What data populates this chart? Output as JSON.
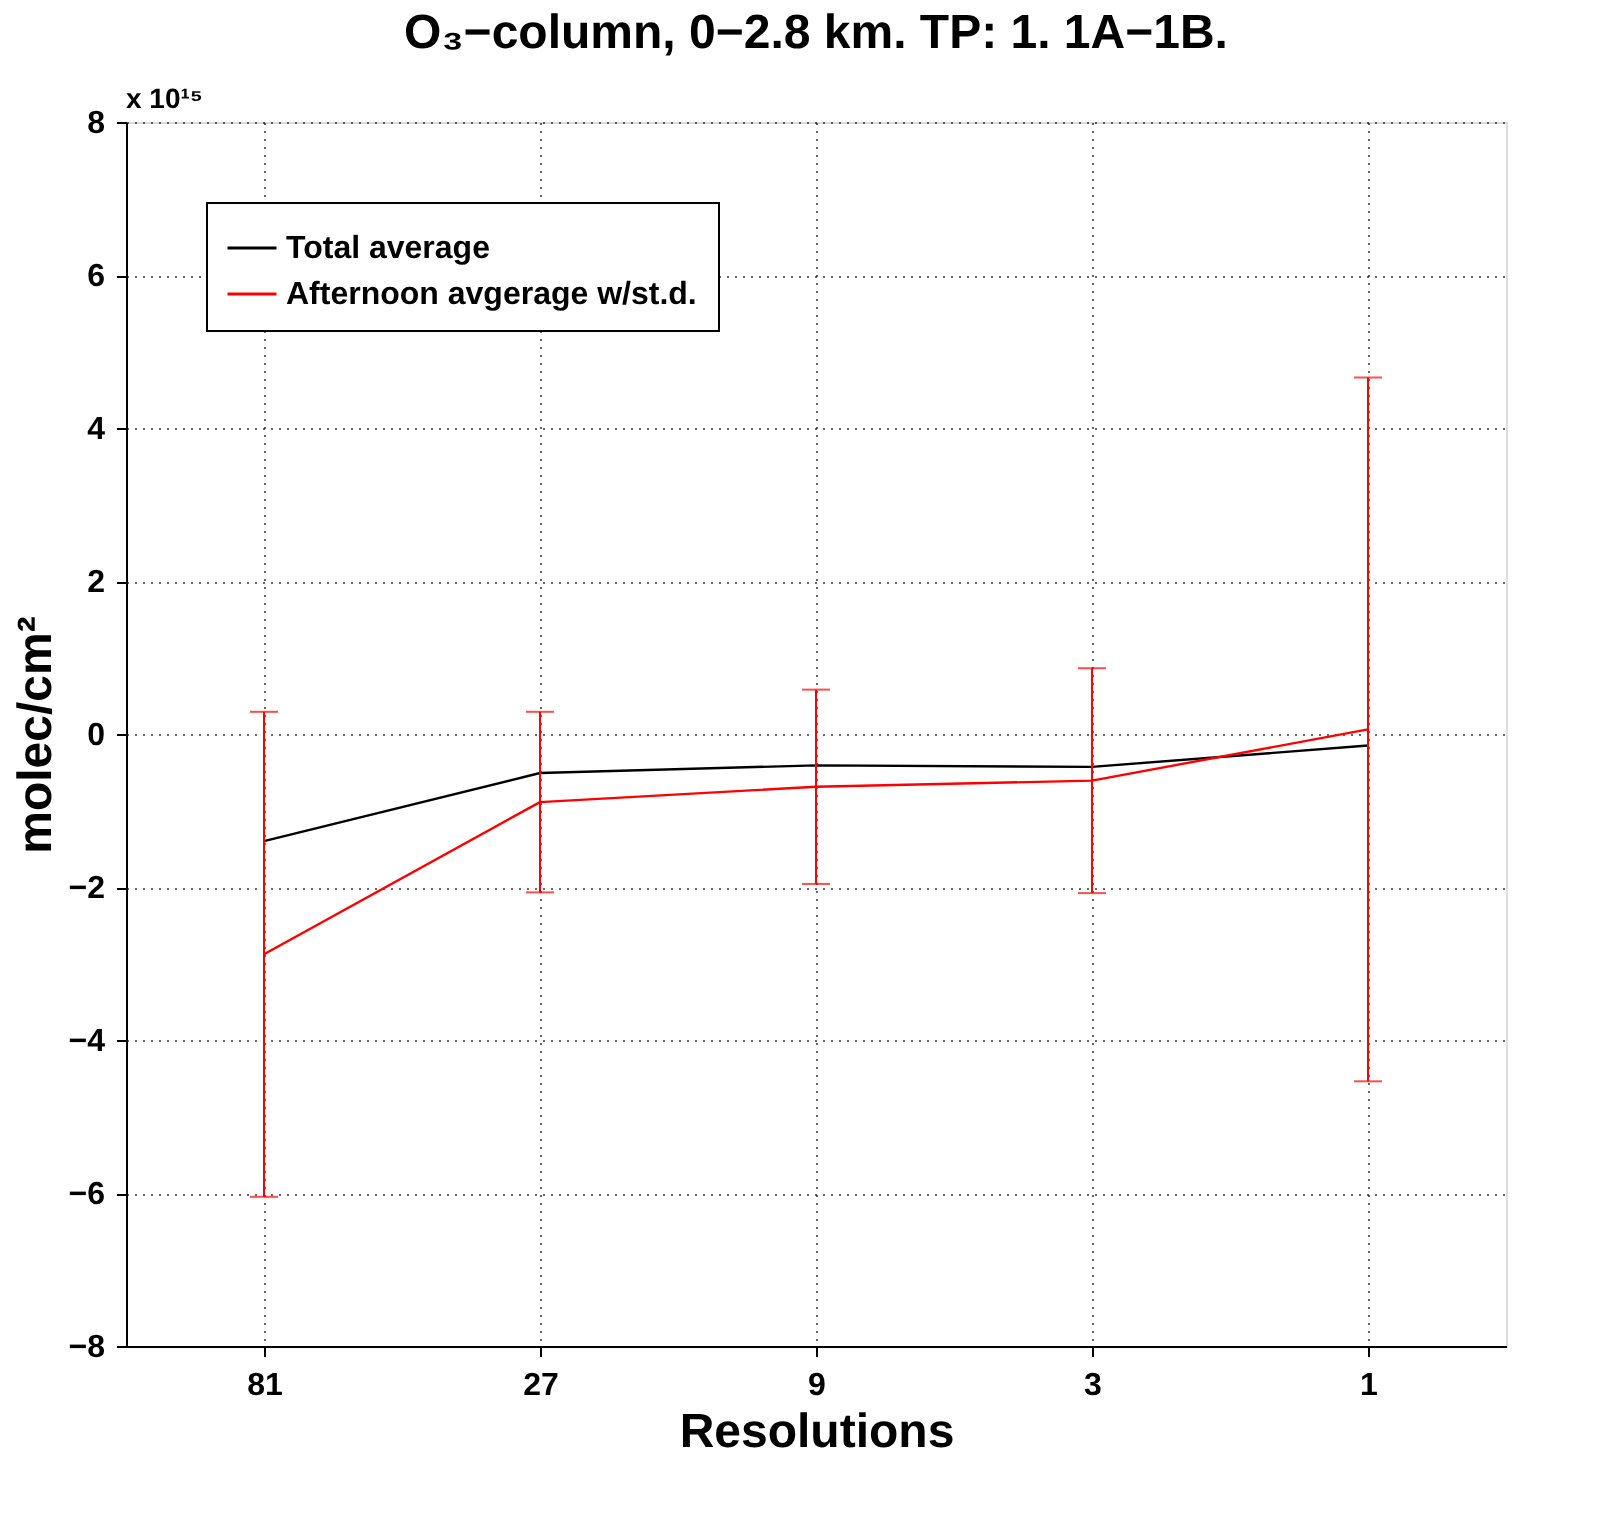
{
  "chart_data": {
    "type": "line",
    "title": "O₃−column, 0−2.8 km. TP: 1. 1A−1B.",
    "xlabel": "Resolutions",
    "ylabel": "molec/cm²",
    "categories": [
      "81",
      "27",
      "9",
      "3",
      "1"
    ],
    "series": [
      {
        "name": "Total average",
        "color": "#000000",
        "values": [
          -1.4,
          -0.51,
          -0.41,
          -0.43,
          -0.15
        ]
      },
      {
        "name": "Afternoon avgerage w/st.d.",
        "color": "#ff0000",
        "values": [
          -2.88,
          -0.89,
          -0.69,
          -0.61,
          0.06
        ],
        "errors": [
          3.17,
          1.18,
          1.27,
          1.47,
          4.6
        ]
      }
    ],
    "ylim": [
      -8,
      8
    ],
    "yticks": [
      -8,
      -6,
      -4,
      -2,
      0,
      2,
      4,
      6,
      8
    ],
    "annotations": [
      "x 10¹⁵"
    ],
    "grid": true,
    "legend": "top left",
    "marker": "none",
    "line_style": "solid"
  }
}
